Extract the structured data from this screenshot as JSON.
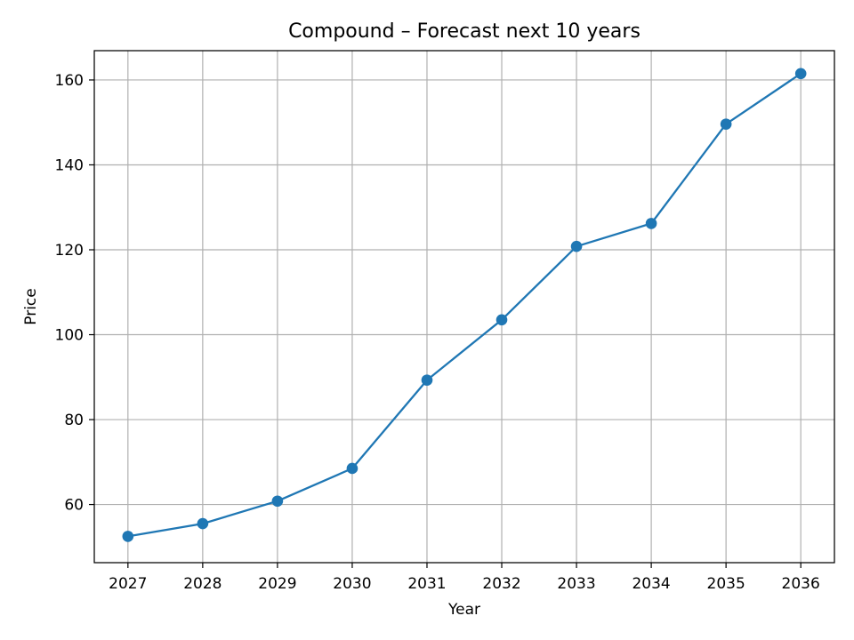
{
  "chart_data": {
    "type": "line",
    "title": "Compound – Forecast next 10 years",
    "xlabel": "Year",
    "ylabel": "Price",
    "x": [
      2027,
      2028,
      2029,
      2030,
      2031,
      2032,
      2033,
      2034,
      2035,
      2036
    ],
    "x_tick_labels": [
      "2027",
      "2028",
      "2029",
      "2030",
      "2031",
      "2032",
      "2033",
      "2034",
      "2035",
      "2036"
    ],
    "y_ticks": [
      60,
      80,
      100,
      120,
      140,
      160
    ],
    "y_tick_labels": [
      "60",
      "80",
      "100",
      "120",
      "140",
      "160"
    ],
    "xlim": [
      2026.55,
      2036.45
    ],
    "ylim": [
      46.3,
      166.9
    ],
    "grid": true,
    "markers": true,
    "series": [
      {
        "color": "#1f77b4",
        "values": [
          52.5,
          55.5,
          60.8,
          68.5,
          89.3,
          103.5,
          120.8,
          126.2,
          149.6,
          161.5
        ]
      }
    ]
  }
}
